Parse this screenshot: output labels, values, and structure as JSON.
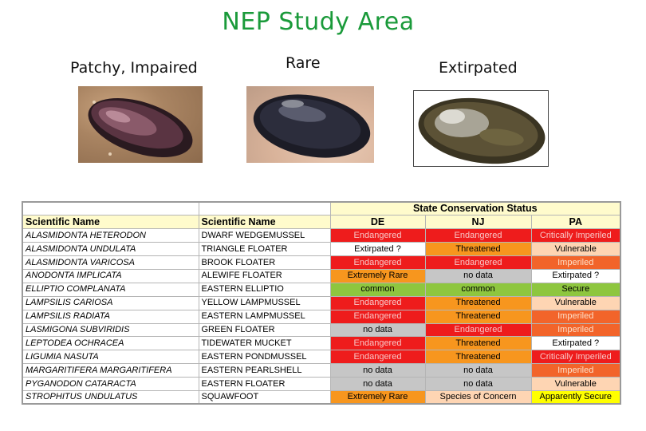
{
  "title": "NEP Study Area",
  "captions": {
    "patchy": "Patchy, Impaired",
    "rare": "Rare",
    "extirpated": "Extirpated"
  },
  "table": {
    "group_header": "State Conservation Status",
    "headers": [
      "Scientific Name",
      "Scientific Name",
      "DE",
      "NJ",
      "PA"
    ],
    "rows": [
      {
        "sci": "ALASMIDONTA HETERODON",
        "common": "DWARF WEDGEMUSSEL",
        "de": "Endangered",
        "nj": "Endangered",
        "pa": "Critically Imperiled"
      },
      {
        "sci": "ALASMIDONTA UNDULATA",
        "common": "TRIANGLE FLOATER",
        "de": "Extirpated ?",
        "nj": "Threatened",
        "pa": "Vulnerable"
      },
      {
        "sci": "ALASMIDONTA VARICOSA",
        "common": "BROOK FLOATER",
        "de": "Endangered",
        "nj": "Endangered",
        "pa": "Imperiled"
      },
      {
        "sci": "ANODONTA IMPLICATA",
        "common": "ALEWIFE FLOATER",
        "de": "Extremely Rare",
        "nj": "no data",
        "pa": "Extirpated ?"
      },
      {
        "sci": "ELLIPTIO COMPLANATA",
        "common": "EASTERN ELLIPTIO",
        "de": "common",
        "nj": "common",
        "pa": "Secure"
      },
      {
        "sci": "LAMPSILIS CARIOSA",
        "common": "YELLOW LAMPMUSSEL",
        "de": "Endangered",
        "nj": "Threatened",
        "pa": "Vulnerable"
      },
      {
        "sci": "LAMPSILIS RADIATA",
        "common": "EASTERN LAMPMUSSEL",
        "de": "Endangered",
        "nj": "Threatened",
        "pa": "Imperiled"
      },
      {
        "sci": "LASMIGONA SUBVIRIDIS",
        "common": "GREEN FLOATER",
        "de": "no data",
        "nj": "Endangered",
        "pa": "Imperiled"
      },
      {
        "sci": "LEPTODEA OCHRACEA",
        "common": "TIDEWATER MUCKET",
        "de": "Endangered",
        "nj": "Threatened",
        "pa": "Extirpated ?"
      },
      {
        "sci": "LIGUMIA NASUTA",
        "common": "EASTERN PONDMUSSEL",
        "de": "Endangered",
        "nj": "Threatened",
        "pa": "Critically Imperiled"
      },
      {
        "sci": "MARGARITIFERA MARGARITIFERA",
        "common": "EASTERN PEARLSHELL",
        "de": "no data",
        "nj": "no data",
        "pa": "Imperiled"
      },
      {
        "sci": "PYGANODON CATARACTA",
        "common": "EASTERN FLOATER",
        "de": "no data",
        "nj": "no data",
        "pa": "Vulnerable"
      },
      {
        "sci": "STROPHITUS UNDULATUS",
        "common": "SQUAWFOOT",
        "de": "Extremely Rare",
        "nj": "Species of Concern",
        "pa": "Apparently Secure"
      }
    ]
  },
  "status_colors": {
    "Endangered": "#ee1c1c",
    "Critically Imperiled": "#ee1c1c",
    "Extirpated ?": "#ffffff",
    "Threatened": "#f7961e",
    "Vulnerable": "#fed5b3",
    "Imperiled": "#f2642a",
    "Extremely Rare": "#f7961e",
    "no data": "#c6c6c6",
    "common": "#8ec63f",
    "Secure": "#8ec63f",
    "Species of Concern": "#fed5b3",
    "Apparently Secure": "#ffff00"
  }
}
